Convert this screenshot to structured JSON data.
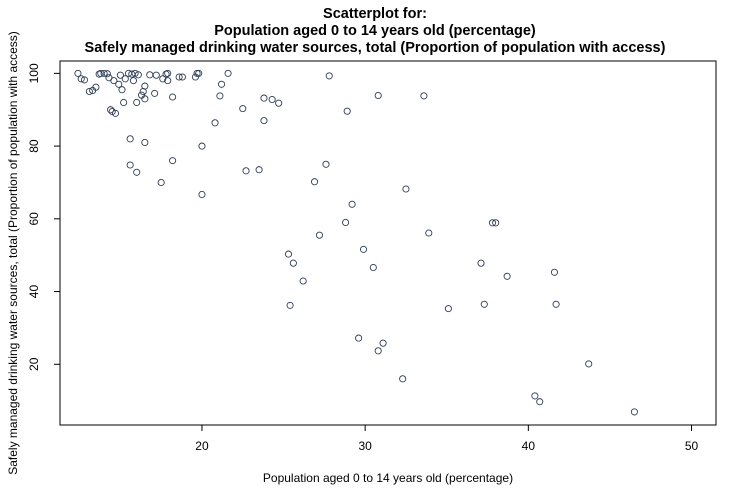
{
  "chart_data": {
    "type": "scatter",
    "title_lines": [
      "Scatterplot for:",
      "Population aged 0 to 14 years old (percentage)",
      "Safely managed drinking water sources, total (Proportion of population with access)"
    ],
    "xlabel": "Population aged 0 to 14 years old (percentage)",
    "ylabel": "Safely managed drinking water sources, total (Proportion of population with access)",
    "xlim": [
      11.3,
      51.5
    ],
    "ylim": [
      3.3,
      103.4
    ],
    "xticks": [
      20,
      30,
      40,
      50
    ],
    "yticks": [
      20,
      40,
      60,
      80,
      100
    ],
    "grid": false,
    "marker_color": "#2f3e55",
    "points": [
      [
        12.4,
        100
      ],
      [
        12.6,
        98.5
      ],
      [
        12.8,
        98.2
      ],
      [
        13.1,
        95
      ],
      [
        13.3,
        95.3
      ],
      [
        13.5,
        96.2
      ],
      [
        13.7,
        99.8
      ],
      [
        13.8,
        100
      ],
      [
        14.0,
        100
      ],
      [
        14.2,
        99.9
      ],
      [
        14.3,
        98.8
      ],
      [
        14.4,
        90
      ],
      [
        14.5,
        89.5
      ],
      [
        14.6,
        98
      ],
      [
        14.7,
        89
      ],
      [
        14.9,
        97
      ],
      [
        15.0,
        99.5
      ],
      [
        15.1,
        95.5
      ],
      [
        15.2,
        92
      ],
      [
        15.3,
        98.5
      ],
      [
        15.5,
        100
      ],
      [
        15.6,
        82
      ],
      [
        15.6,
        74.8
      ],
      [
        15.7,
        99.8
      ],
      [
        15.8,
        98
      ],
      [
        15.9,
        100
      ],
      [
        16.0,
        92
      ],
      [
        16.0,
        72.8
      ],
      [
        16.1,
        99.6
      ],
      [
        16.3,
        94
      ],
      [
        16.4,
        95
      ],
      [
        16.5,
        81
      ],
      [
        16.5,
        93
      ],
      [
        16.5,
        96.5
      ],
      [
        16.8,
        99.6
      ],
      [
        17.1,
        94.5
      ],
      [
        17.2,
        99.5
      ],
      [
        17.5,
        70
      ],
      [
        17.6,
        98.5
      ],
      [
        17.8,
        99.8
      ],
      [
        17.9,
        98
      ],
      [
        17.9,
        100
      ],
      [
        18.2,
        76
      ],
      [
        18.2,
        93.5
      ],
      [
        18.6,
        99
      ],
      [
        18.8,
        99
      ],
      [
        19.6,
        99
      ],
      [
        19.7,
        100
      ],
      [
        19.8,
        100
      ],
      [
        20.0,
        80
      ],
      [
        20.0,
        66.7
      ],
      [
        20.8,
        86.4
      ],
      [
        21.1,
        93.8
      ],
      [
        21.2,
        97
      ],
      [
        21.6,
        100
      ],
      [
        22.5,
        90.3
      ],
      [
        22.7,
        73.2
      ],
      [
        23.5,
        73.5
      ],
      [
        23.8,
        87
      ],
      [
        23.8,
        93.2
      ],
      [
        24.3,
        92.8
      ],
      [
        24.7,
        91.8
      ],
      [
        25.3,
        50.3
      ],
      [
        25.4,
        36.2
      ],
      [
        25.6,
        47.8
      ],
      [
        26.2,
        42.9
      ],
      [
        26.9,
        70.2
      ],
      [
        27.2,
        55.5
      ],
      [
        27.6,
        75
      ],
      [
        27.8,
        99.3
      ],
      [
        28.8,
        59
      ],
      [
        28.9,
        89.6
      ],
      [
        29.2,
        64
      ],
      [
        29.6,
        27.2
      ],
      [
        29.9,
        51.6
      ],
      [
        30.5,
        46.6
      ],
      [
        30.8,
        93.9
      ],
      [
        30.8,
        23.7
      ],
      [
        31.1,
        25.8
      ],
      [
        32.3,
        16
      ],
      [
        32.5,
        68.2
      ],
      [
        33.6,
        93.8
      ],
      [
        33.9,
        56.1
      ],
      [
        35.1,
        35.3
      ],
      [
        37.1,
        47.8
      ],
      [
        37.3,
        36.5
      ],
      [
        37.8,
        58.9
      ],
      [
        38.0,
        58.9
      ],
      [
        38.7,
        44.2
      ],
      [
        40.4,
        11.3
      ],
      [
        40.7,
        9.7
      ],
      [
        41.6,
        45.3
      ],
      [
        41.7,
        36.5
      ],
      [
        43.7,
        20.1
      ],
      [
        46.5,
        6.9
      ]
    ]
  }
}
